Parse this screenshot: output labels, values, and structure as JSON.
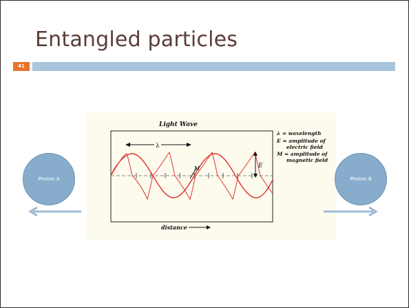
{
  "slide": {
    "title": "Entangled particles",
    "number": "41"
  },
  "figure": {
    "title": "Light Wave",
    "lambda_marker": "λ",
    "amplitude_marker": "E",
    "magnetic_marker": "M",
    "x_axis_label": "distance",
    "legend": {
      "line1": "λ = wavelength",
      "line2a": "E = amplitude of",
      "line2b": "electric field",
      "line3a": "M = amplitude of",
      "line3b": "magnetic field"
    }
  },
  "photons": {
    "a_label": "Photon A",
    "b_label": "Photon B"
  },
  "colors": {
    "title": "#5a3d36",
    "accent_bar": "#a9c4dd",
    "slide_number_bg": "#e8742b",
    "photon_fill": "#88adcc",
    "wave": "#e0322c",
    "figure_bg": "#fdfbee"
  }
}
